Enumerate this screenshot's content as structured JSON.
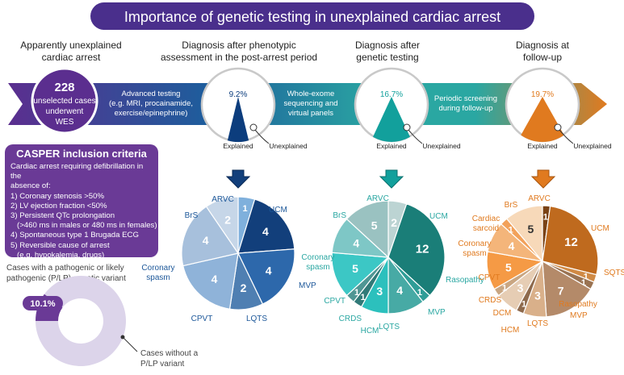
{
  "title": "Importance of genetic testing in unexplained cardiac arrest",
  "colors": {
    "header_bg": "#4a2f8c",
    "band_purple": "#5b2e8f",
    "band_blue": "#1e5d9c",
    "band_teal": "#2aa7a2",
    "band_orange": "#e07a1f",
    "stage_blue": "#0c3d7d",
    "stage_teal": "#12a09c",
    "stage_orange": "#e07a1f",
    "criteria_bg": "#6a3a96",
    "donut_light": "#dcd4ea",
    "donut_dark": "#6a3a96"
  },
  "start": {
    "heading_line1": "Apparently unexplained",
    "heading_line2": "cardiac arrest",
    "count": "228",
    "line1": "unselected cases",
    "line2": "underwent",
    "line3": "WES"
  },
  "arrows": {
    "a1": [
      "Advanced testing",
      "(e.g. MRI, procainamide,",
      "exercise/epinephrine)"
    ],
    "a2": [
      "Whole-exome",
      "sequencing and",
      "virtual panels"
    ],
    "a3": [
      "Periodic screening",
      "during follow-up"
    ]
  },
  "stages": [
    {
      "heading_line1": "Diagnosis after phenotypic",
      "heading_line2": "assessment in the post-arrest period",
      "pct_label": "9.2%",
      "explained_fraction": 0.092,
      "explained_label": "Explained",
      "unexplained_label": "Unexplained",
      "color": "#0c3d7d"
    },
    {
      "heading_line1": "Diagnosis after",
      "heading_line2": "genetic testing",
      "pct_label": "16.7%",
      "explained_fraction": 0.167,
      "explained_label": "Explained",
      "unexplained_label": "Unexplained",
      "color": "#12a09c"
    },
    {
      "heading_line1": "Diagnosis at",
      "heading_line2": "follow-up",
      "pct_label": "19.7%",
      "explained_fraction": 0.197,
      "explained_label": "Explained",
      "unexplained_label": "Unexplained",
      "color": "#e07a1f"
    }
  ],
  "criteria": {
    "title": "CASPER inclusion criteria",
    "intro_line1": "Cardiac arrest requiring defibrillation in the",
    "intro_line2": "absence of:",
    "items": [
      "1) Coronary stenosis >50%",
      "2) LV ejection fraction <50%",
      "3) Persistent QTc prolongation",
      "(>460 ms in males or 480 ms in females)",
      "4) Spontaneous type 1 Brugada ECG",
      "5) Reversible cause of arrest",
      "(e.g. hypokalemia, drugs)"
    ]
  },
  "variant": {
    "heading_line1": "Cases with a pathogenic or likely",
    "heading_line2": "pathogenic (P/LP) genetic variant",
    "pct_label": "10.1%",
    "fraction": 0.101,
    "without_line1": "Cases without a",
    "without_line2": "P/LP variant"
  },
  "chart_data": [
    {
      "type": "pie",
      "title": "Diagnosis after phenotypic assessment in the post-arrest period",
      "slices": [
        {
          "name": "ARVC",
          "value": 1,
          "color": "#7fb0dc"
        },
        {
          "name": "UCM",
          "value": 4,
          "color": "#123f7b"
        },
        {
          "name": "MVP",
          "value": 4,
          "color": "#2d68ab"
        },
        {
          "name": "LQTS",
          "value": 2,
          "color": "#4f7fb2"
        },
        {
          "name": "CPVT",
          "value": 4,
          "color": "#8fb3d9"
        },
        {
          "name": "Coronary spasm",
          "value": 4,
          "color": "#a7c0dc"
        },
        {
          "name": "BrS",
          "value": 2,
          "color": "#c6d6e8"
        }
      ]
    },
    {
      "type": "pie",
      "title": "Diagnosis after genetic testing",
      "slices": [
        {
          "name": "ARVC",
          "value": 2,
          "color": "#bcd4d3"
        },
        {
          "name": "UCM",
          "value": 12,
          "color": "#1a7e78"
        },
        {
          "name": "Rasopathy",
          "value": 1,
          "color": "#2f9d97"
        },
        {
          "name": "MVP",
          "value": 4,
          "color": "#47aaa5"
        },
        {
          "name": "LQTS",
          "value": 3,
          "color": "#2cc0bd"
        },
        {
          "name": "HCM",
          "value": 1,
          "color": "#317a78"
        },
        {
          "name": "CRDS",
          "value": 1,
          "color": "#4f9694"
        },
        {
          "name": "CPVT",
          "value": 5,
          "color": "#3cc7c5"
        },
        {
          "name": "Coronary spasm",
          "value": 4,
          "color": "#7ec7c6"
        },
        {
          "name": "BrS",
          "value": 5,
          "color": "#9ac2c1"
        }
      ]
    },
    {
      "type": "pie",
      "title": "Diagnosis at follow-up",
      "slices": [
        {
          "name": "ARVC",
          "value": 1,
          "color": "#7a4215"
        },
        {
          "name": "UCM",
          "value": 12,
          "color": "#bf6a1e"
        },
        {
          "name": "SQTS",
          "value": 1,
          "color": "#d08a45"
        },
        {
          "name": "Rasopathy",
          "value": 1,
          "color": "#9a7352"
        },
        {
          "name": "MVP",
          "value": 7,
          "color": "#b48a69"
        },
        {
          "name": "LQTS",
          "value": 3,
          "color": "#d9b08a"
        },
        {
          "name": "HCM",
          "value": 1,
          "color": "#8e6a4d"
        },
        {
          "name": "DCM",
          "value": 3,
          "color": "#e6cdb4"
        },
        {
          "name": "CRDS",
          "value": 1,
          "color": "#c9a682"
        },
        {
          "name": "CPVT",
          "value": 5,
          "color": "#f59a45"
        },
        {
          "name": "Coronary spasm",
          "value": 4,
          "color": "#f4b57a"
        },
        {
          "name": "Cardiac sarcoid",
          "value": 1,
          "color": "#f2a15a"
        },
        {
          "name": "BrS",
          "value": 5,
          "color": "#f7d9b9"
        }
      ]
    }
  ]
}
